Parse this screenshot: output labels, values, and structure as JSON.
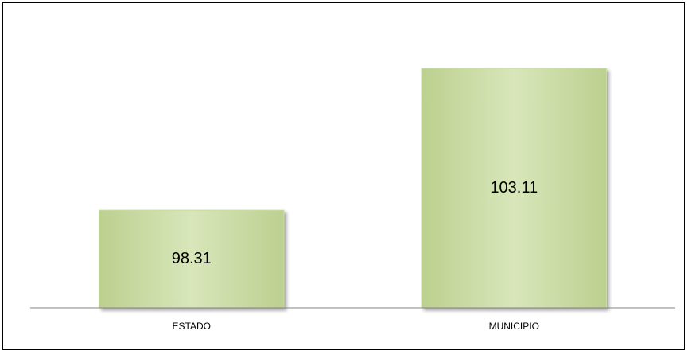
{
  "chart_data": {
    "type": "bar",
    "categories": [
      "ESTADO",
      "MUNICIPIO"
    ],
    "values": [
      98.31,
      103.11
    ],
    "color": "#c9dca3",
    "ylim": [
      95,
      104
    ]
  }
}
